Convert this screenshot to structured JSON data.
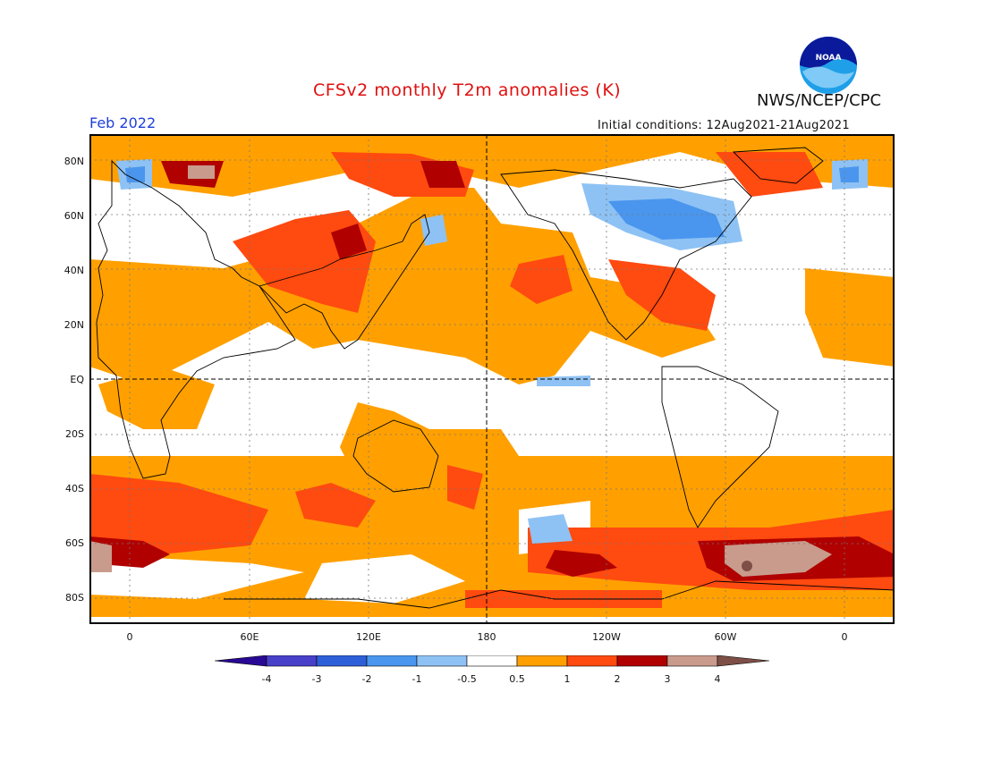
{
  "title": "CFSv2 monthly T2m anomalies (K)",
  "month_label": "Feb 2022",
  "initial_conditions": "Initial conditions: 12Aug2021-21Aug2021",
  "org": "NWS/NCEP/CPC",
  "logo_text": "NOAA",
  "lat_labels": [
    "80N",
    "60N",
    "40N",
    "20N",
    "EQ",
    "20S",
    "40S",
    "60S",
    "80S"
  ],
  "lon_labels": [
    "0",
    "60E",
    "120E",
    "180",
    "120W",
    "60W",
    "0"
  ],
  "colorbar": {
    "colors": [
      "#2a0896",
      "#4840c8",
      "#2d5fd8",
      "#4a96ee",
      "#8ec2f4",
      "#ffffff",
      "#ffa000",
      "#ff4a10",
      "#b00000",
      "#c99b8c",
      "#7d4f46"
    ],
    "labels": [
      "-4",
      "-3",
      "-2",
      "-1",
      "-0.5",
      "0.5",
      "1",
      "2",
      "3",
      "4"
    ]
  },
  "colors": {
    "land_line": "#000000",
    "frame": "#000000",
    "grid": "#777777"
  }
}
